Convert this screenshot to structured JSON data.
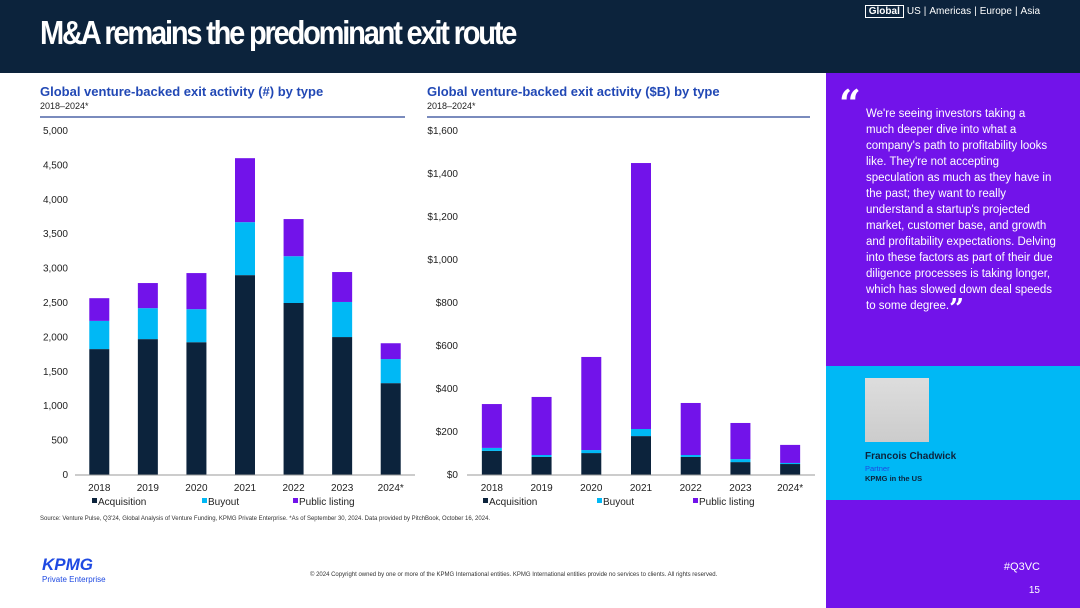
{
  "header": {
    "title": "M&A remains the predominant exit route",
    "regions": [
      "Global",
      "US",
      "Americas",
      "Europe",
      "Asia"
    ],
    "active_region": "Global"
  },
  "chart_data": [
    {
      "type": "bar",
      "stacked": true,
      "title": "Global venture-backed exit activity (#) by type",
      "subtitle": "2018–2024*",
      "categories": [
        "2018",
        "2019",
        "2020",
        "2021",
        "2022",
        "2023",
        "2024*"
      ],
      "ylim": [
        0,
        5000
      ],
      "yticks": [
        "0",
        "500",
        "1,000",
        "1,500",
        "2,000",
        "2,500",
        "3,000",
        "3,500",
        "4,000",
        "4,500",
        "5,000"
      ],
      "ytick_values": [
        0,
        500,
        1000,
        1500,
        2000,
        2500,
        3000,
        3500,
        4000,
        4500,
        5000
      ],
      "legend_position": "bottom",
      "series": [
        {
          "name": "Acquisition",
          "color": "#0c233c",
          "values": [
            1830,
            1975,
            1930,
            2905,
            2500,
            2005,
            1335
          ]
        },
        {
          "name": "Buyout",
          "color": "#00b8f5",
          "values": [
            410,
            450,
            480,
            770,
            680,
            510,
            350
          ]
        },
        {
          "name": "Public listing",
          "color": "#7213ea",
          "values": [
            330,
            365,
            525,
            930,
            540,
            435,
            230
          ]
        }
      ]
    },
    {
      "type": "bar",
      "stacked": true,
      "title": "Global venture-backed exit activity ($B) by type",
      "subtitle": "2018–2024*",
      "categories": [
        "2018",
        "2019",
        "2020",
        "2021",
        "2022",
        "2023",
        "2024*"
      ],
      "ylim": [
        0,
        1600
      ],
      "yticks": [
        "$0",
        "$200",
        "$400",
        "$600",
        "$800",
        "$1,000",
        "$1,200",
        "$1,400",
        "$1,600"
      ],
      "ytick_values": [
        0,
        200,
        400,
        600,
        800,
        1000,
        1200,
        1400,
        1600
      ],
      "legend_position": "bottom",
      "series": [
        {
          "name": "Acquisition",
          "color": "#0c233c",
          "values": [
            112,
            84,
            102,
            181,
            84,
            60,
            51
          ]
        },
        {
          "name": "Buyout",
          "color": "#00b8f5",
          "values": [
            14,
            9,
            14,
            33,
            9,
            14,
            5
          ]
        },
        {
          "name": "Public listing",
          "color": "#7213ea",
          "values": [
            204,
            270,
            433,
            1237,
            242,
            168,
            84
          ]
        }
      ]
    }
  ],
  "source": "Source: Venture Pulse, Q3'24, Global Analysis of Venture Funding, KPMG Private Enterprise. *As of September 30, 2024. Data provided by PitchBook, October 16, 2024.",
  "copyright": "© 2024 Copyright owned by one or more of the KPMG International entities. KPMG International entities provide no services to clients. All rights reserved.",
  "quote": {
    "text": "We're seeing investors taking a much deeper dive into what a company's path to profitability looks like. They're not accepting speculation as much as they have in the past; they want to really understand a startup's projected market, customer base, and growth and profitability expectations. Delving into these factors as part of their due diligence processes is taking longer, which has slowed down deal speeds to some degree.",
    "name": "Francois Chadwick",
    "role": "Partner",
    "org": "KPMG in the US"
  },
  "hashtag": "#Q3VC",
  "page_number": "15",
  "logo": {
    "name": "KPMG",
    "sub": "Private Enterprise"
  }
}
